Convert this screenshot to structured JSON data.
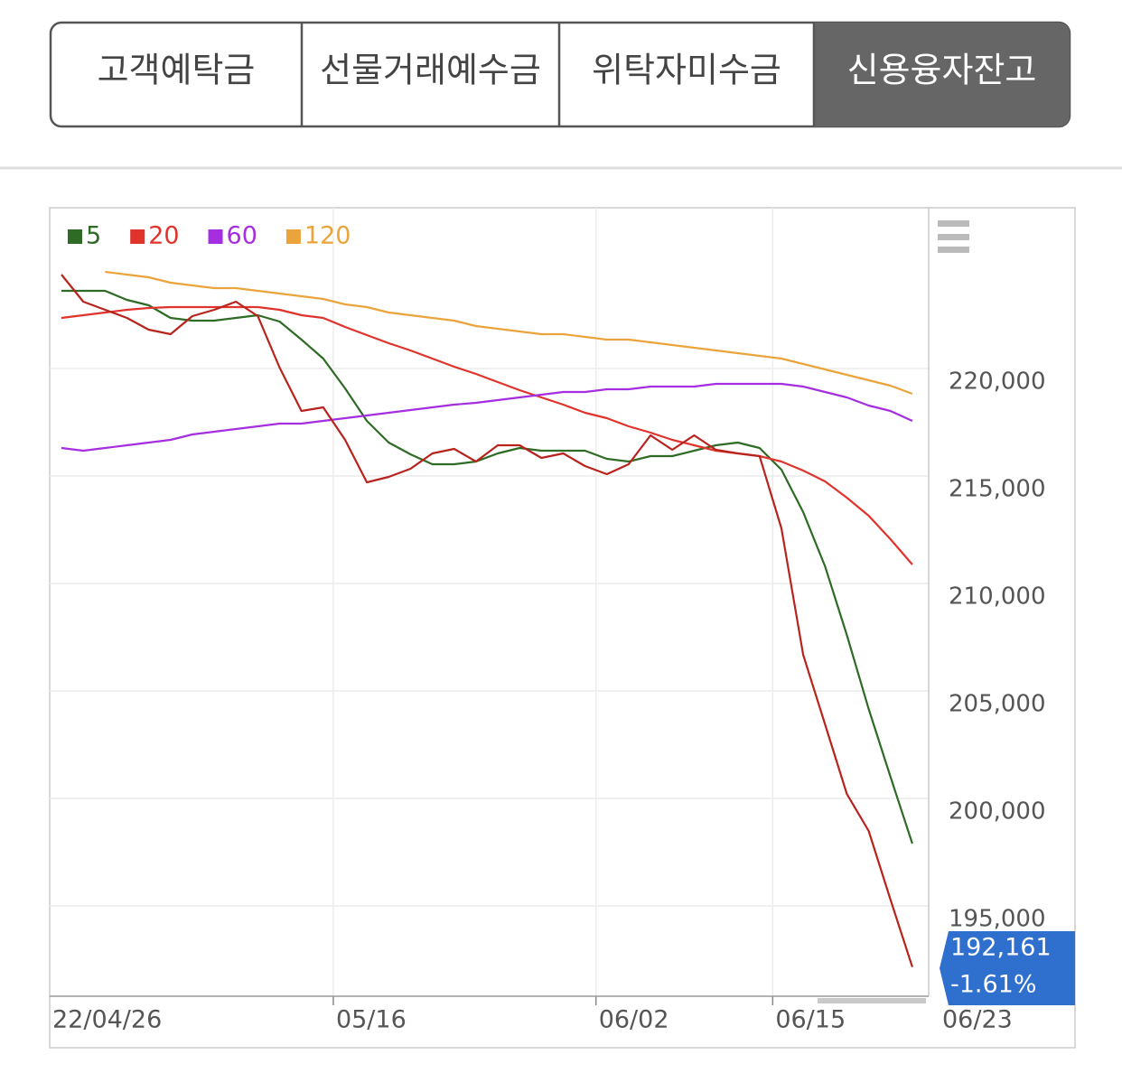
{
  "tabs": {
    "items": [
      "고객예탁금",
      "선물거래예수금",
      "위탁자미수금",
      "신용융자잔고"
    ],
    "active": 3
  },
  "chart_data": {
    "type": "line",
    "legend": "top-left",
    "grid": true,
    "ylim": [
      190800,
      227480
    ],
    "yticks": [
      {
        "value": 195000,
        "label": "195,000"
      },
      {
        "value": 200000,
        "label": "200,000"
      },
      {
        "value": 205000,
        "label": "205,000"
      },
      {
        "value": 210000,
        "label": "210,000"
      },
      {
        "value": 215000,
        "label": "215,000"
      },
      {
        "value": 220000,
        "label": "220,000"
      }
    ],
    "xlim": [
      -0.54,
      39.75
    ],
    "xticks": [
      {
        "value": -0.54,
        "label": "22/04/26"
      },
      {
        "value": 12.46,
        "label": "05/16"
      },
      {
        "value": 24.5,
        "label": "06/02"
      },
      {
        "value": 32.6,
        "label": "06/15"
      },
      {
        "value": 39.75,
        "label": "06/23"
      }
    ],
    "series": [
      {
        "name": "5",
        "color": "#2e6b25",
        "values": [
          223615,
          223615,
          223615,
          223195,
          222943,
          222355,
          222229,
          222229,
          222355,
          222481,
          222187,
          221346,
          220464,
          219077,
          217565,
          216556,
          216010,
          215548,
          215548,
          215674,
          216052,
          216304,
          216178,
          216178,
          216178,
          215800,
          215674,
          215926,
          215926,
          216178,
          216430,
          216556,
          216304,
          215296,
          213321,
          210800,
          207606,
          204160,
          201009,
          197899
        ]
      },
      {
        "name": "20",
        "color": "#e0332b",
        "values": [
          222355,
          222481,
          222607,
          222733,
          222817,
          222859,
          222859,
          222859,
          222859,
          222859,
          222733,
          222481,
          222355,
          221935,
          221557,
          221178,
          220842,
          220464,
          220086,
          219750,
          219372,
          218993,
          218657,
          218321,
          217943,
          217691,
          217313,
          217018,
          216682,
          216430,
          216178,
          216052,
          215926,
          215674,
          215254,
          214749,
          213993,
          213153,
          212061,
          210884
        ]
      },
      {
        "name": "60",
        "color": "#a52ee0",
        "values": [
          216304,
          216178,
          216304,
          216430,
          216556,
          216682,
          216934,
          217060,
          217186,
          217313,
          217439,
          217439,
          217565,
          217691,
          217817,
          217943,
          218069,
          218195,
          218321,
          218405,
          218531,
          218657,
          218783,
          218909,
          218909,
          219035,
          219035,
          219162,
          219162,
          219162,
          219288,
          219288,
          219288,
          219288,
          219162,
          218909,
          218657,
          218279,
          218027,
          217565
        ]
      },
      {
        "name": "120",
        "color": "#eba43b",
        "values": [
          null,
          null,
          224498,
          224372,
          224246,
          223994,
          223868,
          223742,
          223742,
          223615,
          223489,
          223363,
          223237,
          222985,
          222859,
          222607,
          222481,
          222355,
          222229,
          221977,
          221851,
          221725,
          221599,
          221599,
          221473,
          221346,
          221346,
          221220,
          221094,
          220968,
          220842,
          220716,
          220590,
          220464,
          220212,
          219960,
          219708,
          219456,
          219204,
          218825
        ]
      },
      {
        "color": "#b8231d",
        "values": [
          224372,
          223111,
          222733,
          222355,
          221809,
          221599,
          222439,
          222733,
          223111,
          222439,
          220044,
          218027,
          218195,
          216682,
          214707,
          214960,
          215338,
          216052,
          216262,
          215674,
          216430,
          216430,
          215842,
          216052,
          215464,
          215086,
          215548,
          216892,
          216220,
          216892,
          216220,
          216052,
          215926,
          212564,
          206682,
          203446,
          200210,
          198488,
          195294,
          192161
        ]
      }
    ],
    "last_price": {
      "label": "192,161",
      "change": "-1.61%"
    }
  }
}
